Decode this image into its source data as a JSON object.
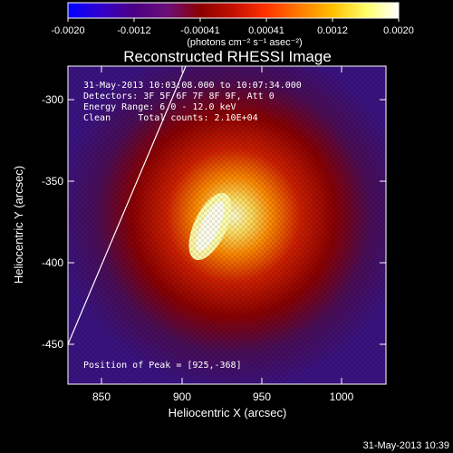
{
  "colorbar": {
    "ticks": [
      "-0.0020",
      "-0.0012",
      "-0.00041",
      "0.00041",
      "0.0012",
      "0.0020"
    ],
    "unit_label": "(photons cm⁻² s⁻¹ asec⁻²)",
    "colormap": [
      "#0000ff",
      "#3300cc",
      "#4b0082",
      "#6a0f7a",
      "#8b0000",
      "#c41000",
      "#ff3300",
      "#ff7a00",
      "#ffbf00",
      "#ffff66",
      "#ffffff"
    ]
  },
  "title": "Reconstructed RHESSI Image",
  "info": {
    "time_range": "31-May-2013 10:03:08.000 to 10:07:34.000",
    "detectors": "Detectors: 3F 5F 6F 7F 8F 9F, Att 0",
    "energy": "Energy Range: 6.0 - 12.0 keV",
    "clean": "Clean     Total counts: 2.10E+04",
    "peak": "Position of Peak = [925,-368]"
  },
  "axes": {
    "xlabel": "Heliocentric X (arcsec)",
    "ylabel": "Heliocentric Y (arcsec)",
    "xticks": [
      "850",
      "900",
      "950",
      "1000"
    ],
    "yticks": [
      "-300",
      "-350",
      "-400",
      "-450"
    ]
  },
  "timestamp": "31-May-2013 10:39"
}
